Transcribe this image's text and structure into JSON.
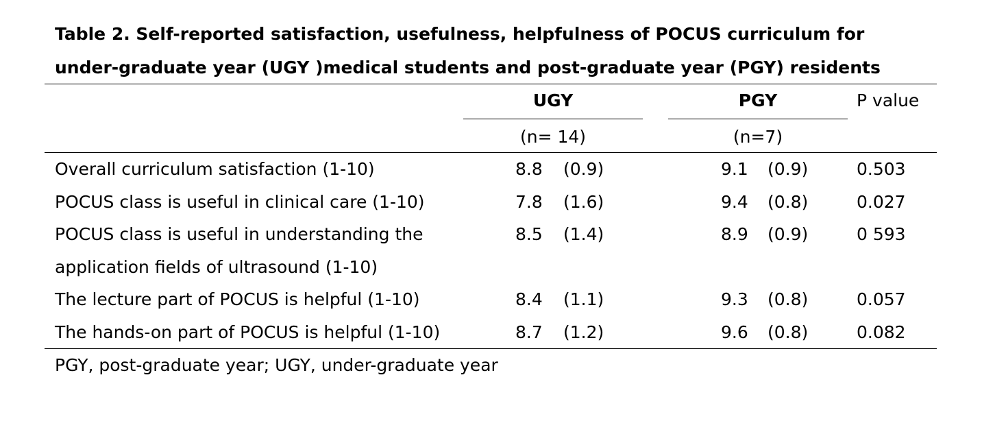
{
  "title": {
    "line1": "Table 2. Self-reported satisfaction, usefulness, helpfulness of POCUS curriculum for",
    "line2": "under-graduate year (UGY )medical students and post-graduate year (PGY) residents"
  },
  "header": {
    "ugy": "UGY",
    "pgy": "PGY",
    "p_value": "P value",
    "ugy_n": "(n= 14)",
    "pgy_n": "(n=7)"
  },
  "rows": [
    {
      "label": "Overall curriculum satisfaction (1-10)",
      "ugy_mean": "8.8",
      "ugy_sd": "(0.9)",
      "pgy_mean": "9.1",
      "pgy_sd": "(0.9)",
      "p": "0.503"
    },
    {
      "label": "POCUS class is useful in clinical care (1-10)",
      "ugy_mean": "7.8",
      "ugy_sd": "(1.6)",
      "pgy_mean": "9.4",
      "pgy_sd": "(0.8)",
      "p": "0.027"
    },
    {
      "label": "POCUS class is useful in understanding the",
      "label2": "application fields of ultrasound (1-10)",
      "ugy_mean": "8.5",
      "ugy_sd": "(1.4)",
      "pgy_mean": "8.9",
      "pgy_sd": "(0.9)",
      "p": "0 593"
    },
    {
      "label": "The lecture part of POCUS is helpful (1-10)",
      "ugy_mean": "8.4",
      "ugy_sd": "(1.1)",
      "pgy_mean": "9.3",
      "pgy_sd": "(0.8)",
      "p": "0.057"
    },
    {
      "label": "The hands-on part of POCUS is helpful (1-10)",
      "ugy_mean": "8.7",
      "ugy_sd": "(1.2)",
      "pgy_mean": "9.6",
      "pgy_sd": "(0.8)",
      "p": "0.082"
    }
  ],
  "footnote": "PGY, post-graduate year; UGY, under-graduate year"
}
